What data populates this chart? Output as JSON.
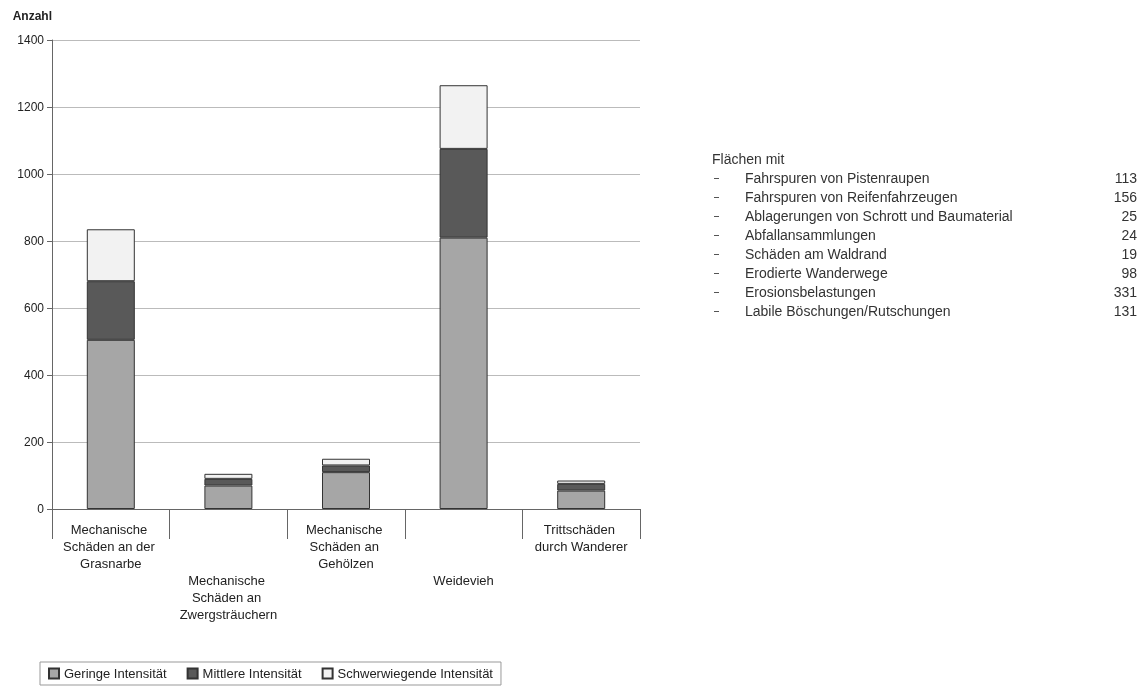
{
  "chart_data": [
    {
      "type": "bar",
      "ylabel": "Anzahl",
      "stacked": true,
      "categories": [
        "Mechanische Schäden an der Grasnarbe",
        "Mechanische Schäden an Zwergsträuchern",
        "Mechanische Schäden an Gehölzen",
        "Weidevieh",
        "Trittschäden durch Wanderer"
      ],
      "series": [
        {
          "name": "Geringe Intensität",
          "color": "#a6a6a6",
          "values": [
            505,
            70,
            110,
            810,
            55
          ]
        },
        {
          "name": "Mittlere Intensität",
          "color": "#595959",
          "values": [
            175,
            20,
            20,
            265,
            20
          ]
        },
        {
          "name": "Schwerwiegende Intensität",
          "color": "#f2f2f2",
          "values": [
            155,
            15,
            20,
            190,
            10
          ]
        }
      ],
      "ylim": [
        0,
        1400
      ],
      "yticks": [
        0,
        200,
        400,
        600,
        800,
        1000,
        1200,
        1400
      ],
      "grid": "y",
      "legend": "bottom left"
    },
    {
      "type": "other",
      "title": "Flächen mit",
      "categories": [
        "Fahrspuren von Pistenraupen",
        "Fahrspuren von Reifenfahrzeugen",
        "Ablagerungen von Schrott und Baumaterial",
        "Abfallansammlungen",
        "Schäden am Waldrand",
        "Erodierte Wanderwege",
        "Erosionsbelastungen",
        "Labile Böschungen/Rutschungen"
      ],
      "values": [
        113,
        156,
        25,
        24,
        19,
        98,
        331,
        131
      ],
      "data_labels": true
    }
  ]
}
